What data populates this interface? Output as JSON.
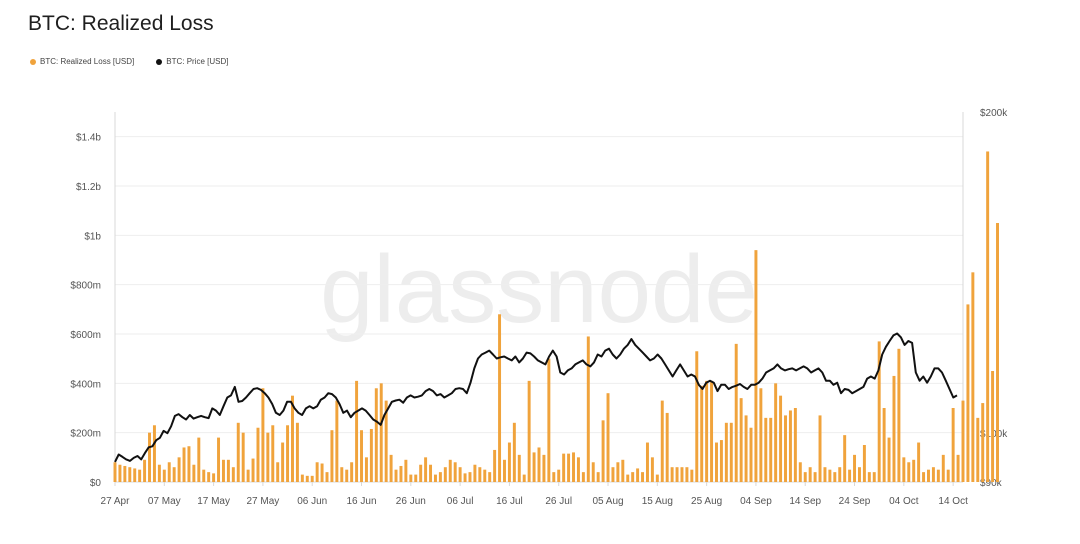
{
  "title": "BTC: Realized Loss",
  "watermark": "glassnode",
  "legend": {
    "loss_label": "BTC: Realized Loss [USD]",
    "price_label": "BTC: Price [USD]"
  },
  "colors": {
    "loss": "#f0a33c",
    "price": "#111111",
    "grid": "#eeeeee"
  },
  "chart_data": {
    "type": "bar",
    "title": "BTC: Realized Loss",
    "x_ticks": [
      "27 Apr",
      "07 May",
      "17 May",
      "27 May",
      "06 Jun",
      "16 Jun",
      "26 Jun",
      "06 Jul",
      "16 Jul",
      "26 Jul",
      "05 Aug",
      "15 Aug",
      "25 Aug",
      "04 Sep",
      "14 Sep",
      "24 Sep",
      "04 Oct",
      "14 Oct"
    ],
    "y_left_ticks": [
      "$0",
      "$200m",
      "$400m",
      "$600m",
      "$800m",
      "$1b",
      "$1.2b",
      "$1.4b"
    ],
    "y_right_ticks": [
      "$90k",
      "$100k",
      "$200k"
    ],
    "y_left_range": [
      0,
      1500
    ],
    "y_right_scale": "log",
    "y_right_range": [
      90,
      200
    ],
    "grid": true,
    "legend_position": "top-left",
    "x_range": [
      "2025-04-27",
      "2025-10-16"
    ],
    "series": [
      {
        "name": "BTC: Realized Loss [USD]",
        "type": "bar",
        "unit": "USD millions",
        "start_date": "2025-04-27",
        "values": [
          80,
          70,
          65,
          60,
          55,
          50,
          90,
          200,
          230,
          70,
          50,
          80,
          60,
          100,
          140,
          145,
          70,
          180,
          50,
          40,
          35,
          180,
          90,
          90,
          60,
          240,
          200,
          50,
          95,
          220,
          380,
          200,
          230,
          80,
          160,
          230,
          350,
          240,
          30,
          25,
          25,
          80,
          75,
          40,
          210,
          330,
          60,
          50,
          80,
          410,
          210,
          100,
          215,
          380,
          400,
          330,
          110,
          50,
          65,
          90,
          30,
          30,
          70,
          100,
          70,
          30,
          40,
          60,
          90,
          80,
          60,
          35,
          40,
          70,
          60,
          50,
          40,
          130,
          680,
          90,
          160,
          240,
          110,
          30,
          410,
          120,
          140,
          110,
          500,
          40,
          50,
          115,
          115,
          120,
          100,
          40,
          590,
          80,
          40,
          250,
          360,
          60,
          80,
          90,
          30,
          40,
          55,
          40,
          160,
          100,
          30,
          330,
          280,
          60,
          60,
          60,
          60,
          50,
          530,
          390,
          410,
          410,
          160,
          170,
          240,
          240,
          560,
          340,
          270,
          220,
          940,
          380,
          260,
          260,
          400,
          350,
          270,
          290,
          300,
          80,
          40,
          60,
          40,
          270,
          60,
          50,
          40,
          60,
          190,
          50,
          110,
          60,
          150,
          40,
          40,
          570,
          300,
          180,
          430,
          540,
          100,
          80,
          90,
          160,
          40,
          50,
          60,
          50,
          110,
          50,
          300,
          110,
          330,
          720,
          850,
          260,
          320,
          1340,
          450,
          1050
        ]
      },
      {
        "name": "BTC: Price [USD]",
        "type": "line",
        "unit": "USD thousands",
        "values": [
          94.0,
          95.5,
          95.0,
          94.5,
          94.2,
          94.8,
          95.2,
          94.5,
          95.8,
          97.0,
          97.2,
          98.5,
          99.0,
          100.5,
          100.0,
          101.5,
          103.8,
          104.2,
          103.5,
          103.0,
          104.0,
          103.2,
          103.5,
          103.8,
          103.5,
          103.3,
          105.5,
          105.0,
          104.0,
          106.0,
          108.0,
          108.5,
          110.5,
          107.0,
          107.2,
          108.0,
          109.0,
          110.0,
          110.2,
          109.8,
          109.0,
          108.0,
          106.5,
          104.5,
          104.0,
          105.0,
          107.0,
          107.0,
          105.5,
          104.5,
          104.0,
          105.5,
          106.0,
          105.5,
          106.0,
          107.5,
          108.0,
          109.0,
          108.8,
          108.0,
          106.5,
          104.5,
          105.0,
          103.5,
          104.5,
          105.0,
          105.5,
          105.0,
          104.0,
          103.0,
          102.5,
          101.8,
          104.0,
          105.5,
          107.0,
          107.3,
          107.5,
          106.8,
          108.0,
          108.5,
          108.0,
          108.2,
          108.5,
          109.5,
          110.0,
          109.5,
          108.5,
          108.8,
          108.0,
          108.5,
          109.0,
          110.0,
          110.2,
          110.0,
          109.0,
          111.5,
          115.0,
          117.5,
          118.5,
          119.0,
          119.5,
          118.5,
          117.5,
          117.8,
          118.0,
          117.5,
          117.0,
          118.0,
          116.5,
          117.5,
          119.0,
          118.8,
          118.0,
          117.0,
          116.5,
          116.0,
          118.0,
          119.5,
          118.0,
          114.0,
          113.5,
          114.5,
          115.0,
          116.0,
          116.5,
          117.0,
          116.0,
          115.5,
          116.5,
          118.5,
          118.0,
          119.5,
          120.0,
          118.5,
          117.5,
          118.5,
          120.0,
          121.0,
          122.5,
          121.0,
          120.0,
          119.0,
          118.0,
          117.0,
          117.5,
          118.5,
          117.5,
          116.0,
          114.5,
          113.0,
          114.5,
          116.0,
          114.5,
          113.0,
          113.5,
          113.0,
          111.0,
          110.0,
          111.5,
          112.0,
          111.5,
          109.5,
          111.0,
          111.0,
          110.0,
          110.5,
          110.8,
          111.2,
          110.5,
          110.0,
          111.0,
          111.0,
          111.5,
          112.5,
          114.0,
          114.5,
          115.0,
          116.0,
          115.0,
          114.5,
          114.8,
          115.0,
          114.5,
          115.0,
          115.5,
          115.0,
          114.0,
          114.5,
          115.0,
          114.0,
          112.0,
          112.0,
          111.0,
          111.5,
          109.0,
          110.0,
          109.8,
          109.0,
          109.5,
          110.0,
          110.5,
          112.5,
          113.0,
          112.5,
          114.5,
          118.5,
          120.5,
          122.0,
          123.5,
          124.0,
          123.0,
          121.0,
          122.0,
          121.5,
          114.0,
          112.0,
          113.0,
          111.5,
          113.0,
          115.0,
          115.0,
          114.0,
          112.0,
          110.0,
          108.0,
          108.5
        ]
      }
    ]
  }
}
